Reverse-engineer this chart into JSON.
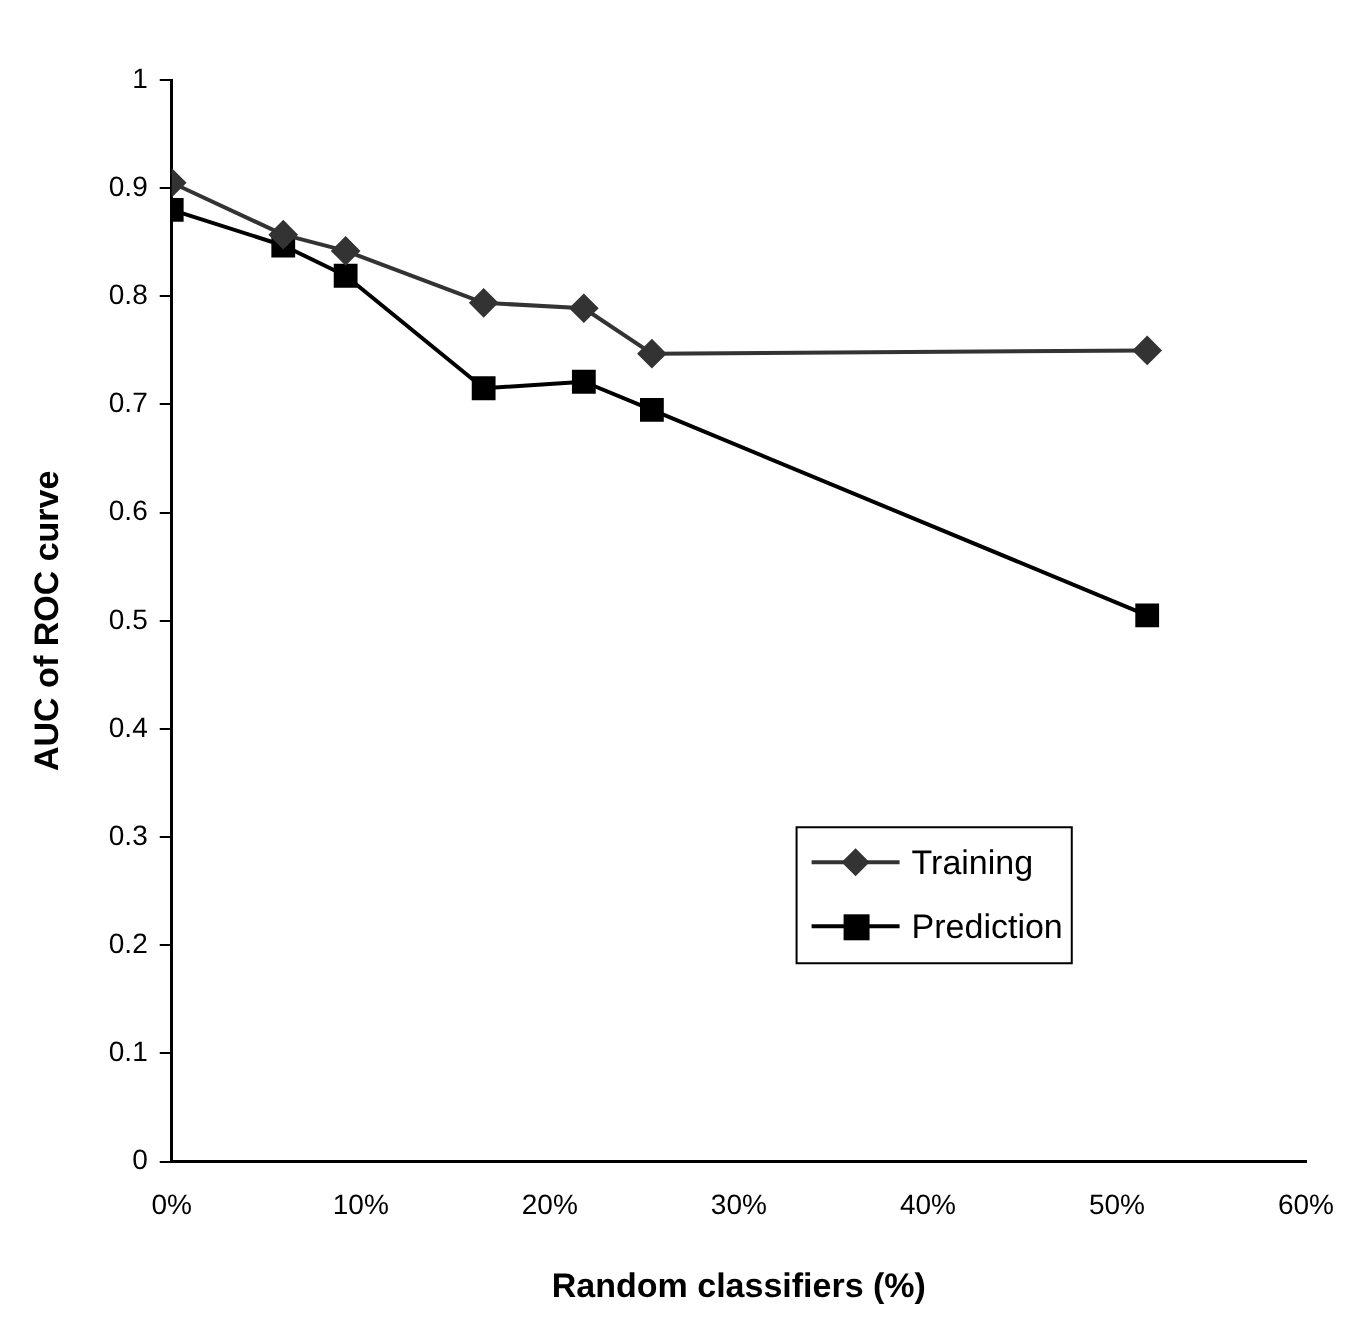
{
  "chart_data": {
    "type": "line",
    "xlabel": "Random classifiers (%)",
    "ylabel": "AUC of ROC curve",
    "x": [
      0,
      5.9,
      9.2,
      16.5,
      21.8,
      25.4,
      51.6
    ],
    "series": [
      {
        "name": "Training",
        "color": "#333333",
        "marker": "diamond",
        "values": [
          0.905,
          0.857,
          0.842,
          0.794,
          0.789,
          0.747,
          0.75
        ]
      },
      {
        "name": "Prediction",
        "color": "#000000",
        "marker": "square",
        "values": [
          0.88,
          0.847,
          0.819,
          0.715,
          0.721,
          0.695,
          0.505
        ]
      }
    ],
    "xlim": [
      0,
      60
    ],
    "xticks": [
      {
        "value": 0,
        "label": "0%"
      },
      {
        "value": 10,
        "label": "10%"
      },
      {
        "value": 20,
        "label": "20%"
      },
      {
        "value": 30,
        "label": "30%"
      },
      {
        "value": 40,
        "label": "40%"
      },
      {
        "value": 50,
        "label": "50%"
      },
      {
        "value": 60,
        "label": "60%"
      }
    ],
    "ylim": [
      0,
      1
    ],
    "yticks": [
      0,
      0.1,
      0.2,
      0.3,
      0.4,
      0.5,
      0.6,
      0.7,
      0.8,
      0.9,
      1
    ],
    "grid": false,
    "legend": "bottom right",
    "line_style": "solid"
  }
}
